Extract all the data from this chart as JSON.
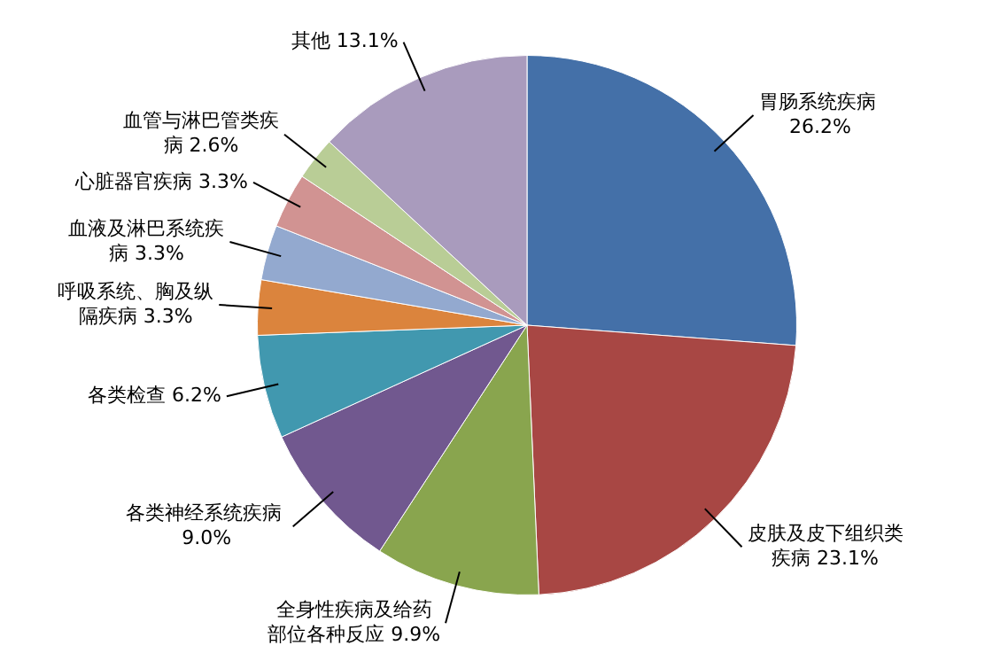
{
  "chart_data": {
    "type": "pie",
    "categories": [
      "胃肠系统疾病",
      "皮肤及皮下组织类疾病",
      "全身性疾病及给药部位各种反应",
      "各类神经系统疾病",
      "各类检查",
      "呼吸系统、胸及纵隔疾病",
      "血液及淋巴系统疾病",
      "心脏器官疾病",
      "血管与淋巴管类疾病",
      "其他"
    ],
    "values": [
      26.2,
      23.1,
      9.9,
      9.0,
      6.2,
      3.3,
      3.3,
      3.3,
      2.6,
      13.1
    ],
    "value_labels": [
      "26.2%",
      "23.1%",
      "9.9%",
      "9.0%",
      "6.2%",
      "3.3%",
      "3.3%",
      "3.3%",
      "2.6%",
      "13.1%"
    ],
    "colors": [
      "#4470a8",
      "#a84744",
      "#89a54e",
      "#71588f",
      "#4198af",
      "#db843d",
      "#93a9cf",
      "#d19392",
      "#b9cd96",
      "#a99bbd"
    ],
    "legend": false
  }
}
